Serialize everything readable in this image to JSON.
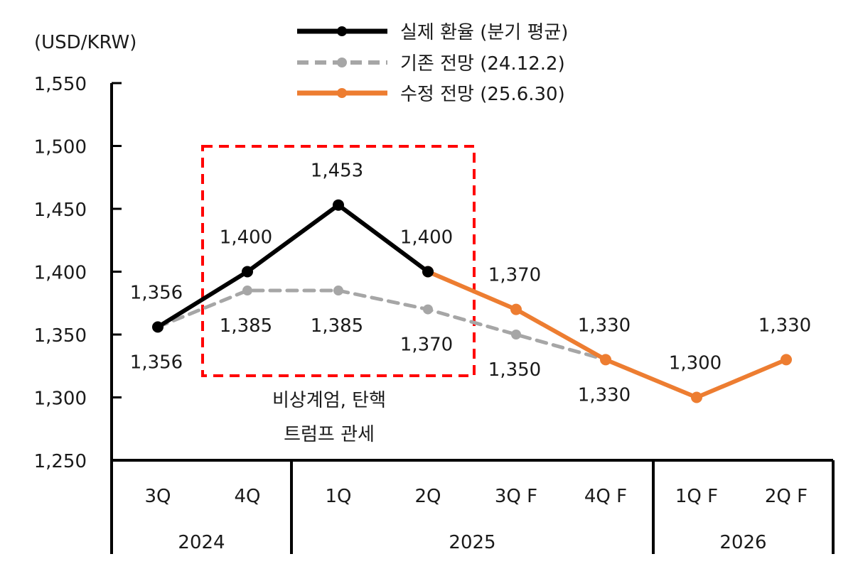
{
  "chart_data": {
    "type": "line",
    "ylabel": "(USD/KRW)",
    "ylim": [
      1250,
      1550
    ],
    "yticks": [
      1250,
      1300,
      1350,
      1400,
      1450,
      1500,
      1550
    ],
    "ytick_labels": [
      "1,250",
      "1,300",
      "1,350",
      "1,400",
      "1,450",
      "1,500",
      "1,550"
    ],
    "categories": [
      "3Q",
      "4Q",
      "1Q",
      "2Q",
      "3Q F",
      "4Q F",
      "1Q F",
      "2Q F"
    ],
    "year_groups": [
      {
        "label": "2024",
        "from": 0,
        "to": 1
      },
      {
        "label": "2025",
        "from": 2,
        "to": 5
      },
      {
        "label": "2026",
        "from": 6,
        "to": 7
      }
    ],
    "legend_position": "top-center",
    "series": [
      {
        "name": "실제 환율 (분기 평균)",
        "color": "#000000",
        "style": "solid",
        "values": [
          1356,
          1400,
          1453,
          1400,
          null,
          null,
          null,
          null
        ],
        "labels": [
          "1,356",
          "1,400",
          "1,453",
          "1,400",
          null,
          null,
          null,
          null
        ],
        "label_pos": [
          "above",
          "above",
          "above",
          "above",
          null,
          null,
          null,
          null
        ]
      },
      {
        "name": "기존 전망 (24.12.2)",
        "color": "#a6a6a6",
        "style": "dashed",
        "values": [
          1356,
          1385,
          1385,
          1370,
          1350,
          1330,
          null,
          null
        ],
        "labels": [
          "1,356",
          "1,385",
          "1,385",
          "1,370",
          "1,350",
          "1,330",
          null,
          null
        ],
        "label_pos": [
          "below",
          "below",
          "below",
          "below",
          "below",
          "below",
          null,
          null
        ]
      },
      {
        "name": "수정 전망 (25.6.30)",
        "color": "#ed7d31",
        "style": "solid",
        "values": [
          null,
          null,
          null,
          1400,
          1370,
          1330,
          1300,
          1330
        ],
        "labels": [
          null,
          null,
          null,
          null,
          "1,370",
          "1,330",
          "1,300",
          "1,330"
        ],
        "label_pos": [
          null,
          null,
          null,
          null,
          "above",
          "above",
          "above",
          "above"
        ]
      }
    ],
    "annotation": {
      "box_color": "#ff0000",
      "lines": [
        "비상계엄, 탄핵",
        "트럼프 관세"
      ]
    }
  }
}
